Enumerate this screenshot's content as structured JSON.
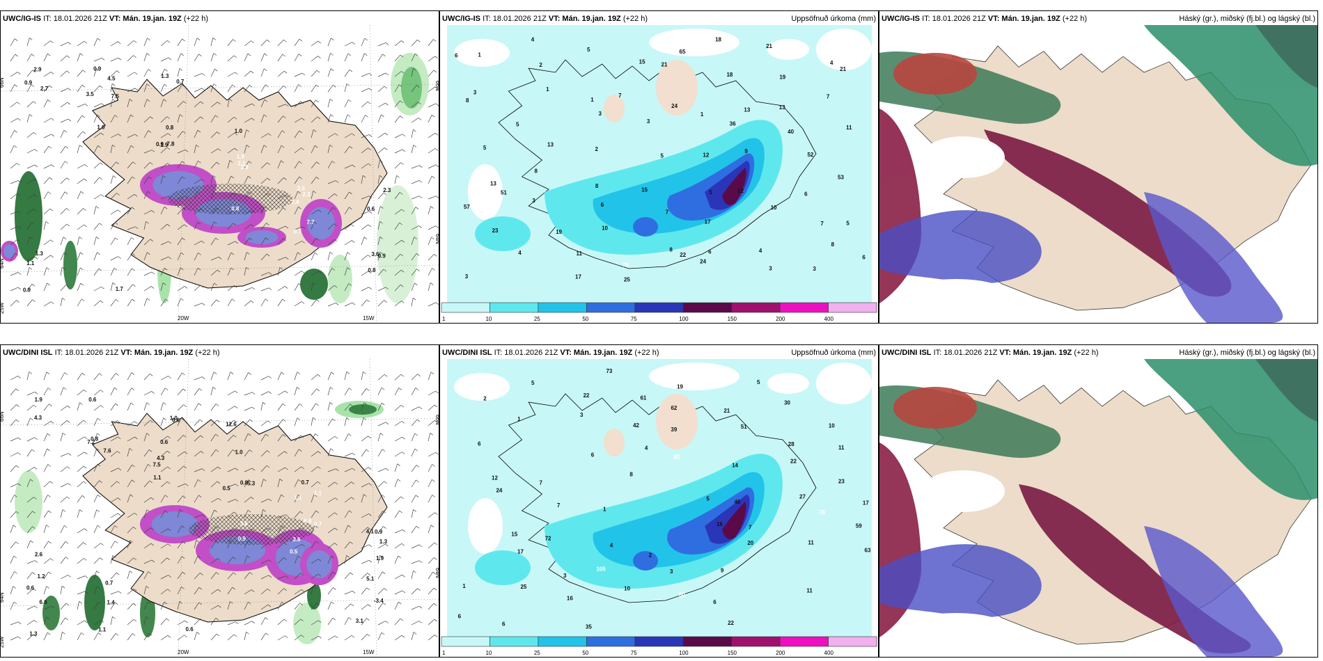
{
  "panels": {
    "ig_wind": {
      "model": "UWC/IG-IS",
      "it": "IT: 18.01.2026 21Z",
      "vt": "VT: Mán. 19.jan. 19Z",
      "lead": "(+22 h)"
    },
    "ig_precip": {
      "model": "UWC/IG-IS",
      "it": "IT: 18.01.2026 21Z",
      "vt": "VT: Mán. 19.jan. 19Z",
      "lead": "(+22 h)",
      "right": "Uppsöfnuð úrkoma (mm)"
    },
    "ig_cloud": {
      "model": "UWC/IG-IS",
      "it": "IT: 18.01.2026 21Z",
      "vt": "VT: Mán. 19.jan. 19Z",
      "lead": "(+22 h)",
      "right": "Háský (gr.), miðský (fj.bl.) og lágský (bl.)"
    },
    "dini_wind": {
      "model": "UWC/DINI ISL",
      "it": "IT: 18.01.2026 21Z",
      "vt": "VT: Mán. 19.jan. 19Z",
      "lead": "(+22 h)"
    },
    "dini_precip": {
      "model": "UWC/DINI ISL",
      "it": "IT: 18.01.2026 21Z",
      "vt": "VT: Mán. 19.jan. 19Z",
      "lead": "(+22 h)",
      "right": "Uppsöfnuð úrkoma (mm)"
    },
    "dini_cloud": {
      "model": "UWC/DINI ISL",
      "it": "IT: 18.01.2026 21Z",
      "vt": "VT: Mán. 19.jan. 19Z",
      "lead": "(+22 h)",
      "right": "Háský (gr.), miðský (fj.bl.) og lágský (bl.)"
    }
  },
  "axis_labels": {
    "lat66": "66N",
    "lat64": "64N",
    "lon20": "20W",
    "lon15": "15W",
    "lon25": "25W"
  },
  "colorbar": {
    "ticks": [
      "1",
      "10",
      "25",
      "50",
      "75",
      "100",
      "150",
      "200",
      "400"
    ],
    "colors": [
      "#c8f7f7",
      "#5ee8ee",
      "#22c3e8",
      "#2f6ee0",
      "#2a35b8",
      "#5a0a48",
      "#a0106e",
      "#ee10c0",
      "#f2b0ee"
    ]
  },
  "wind_values": {
    "ig": [
      "0.9",
      "1.0",
      "0.9",
      "0.8",
      "0.7",
      "0.8",
      "2.7",
      "3.5",
      "1.9",
      "2.8",
      "2.4",
      "0.9",
      "2.9",
      "7.5",
      "7.8",
      "1.9",
      "7.7",
      "3.6",
      "0.9",
      "4.5",
      "0.8",
      "2.1",
      "2.3",
      "0.6",
      "1.1",
      "0.9",
      "0.7",
      "1.0",
      "2.5",
      "2.3",
      "1.3",
      "1.7",
      "1.3"
    ],
    "dini": [
      "1.9",
      "0.8",
      "1.1",
      "0.9",
      "0.5",
      "3.1",
      "4.3",
      "7.6",
      "4.3",
      "3.6",
      "3.6",
      "-3.4",
      "1.3",
      "7.2",
      "7.5",
      "5.3",
      "6.6",
      "5.1",
      "6.6",
      "0.6",
      "0.6",
      "0.5",
      "0.7",
      "1.3",
      "0.6",
      "1.1",
      "1.0",
      "0.8",
      "2.1",
      "1.9",
      "1.2",
      "1.4",
      "0.6",
      "1.0",
      "1.1",
      "0.9",
      "2.6",
      "0.7",
      "0.6",
      "12.6",
      "0.7",
      "4.1"
    ]
  },
  "precip_values": {
    "ig": [
      "1",
      "1",
      "3",
      "5",
      "5",
      "10",
      "8",
      "3",
      "2",
      "1",
      "3",
      "12",
      "12",
      "7",
      "6",
      "4",
      "5",
      "7",
      "1",
      "9",
      "6",
      "5",
      "4",
      "17",
      "15",
      "24",
      "36",
      "52",
      "57",
      "23",
      "11",
      "25",
      "21",
      "13",
      "40",
      "53",
      "51",
      "19",
      "78",
      "65",
      "18",
      "13",
      "11",
      "13",
      "3",
      "10",
      "22",
      "18",
      "19",
      "7",
      "5",
      "8",
      "6",
      "8",
      "24",
      "21",
      "21",
      "8",
      "13",
      "8",
      "7",
      "6",
      "3",
      "4",
      "3",
      "5",
      "2",
      "15",
      "17",
      "4",
      "3",
      "6"
    ],
    "dini": [
      "2",
      "1",
      "6",
      "8",
      "16",
      "20",
      "11",
      "6",
      "5",
      "3",
      "4",
      "5",
      "7",
      "11",
      "1",
      "6",
      "22",
      "42",
      "82",
      "46",
      "78",
      "63",
      "25",
      "35",
      "61",
      "39",
      "14",
      "27",
      "59",
      "17",
      "16",
      "73",
      "62",
      "51",
      "22",
      "17",
      "15",
      "3",
      "10",
      "19",
      "21",
      "28",
      "23",
      "24",
      "72",
      "105",
      "80",
      "22",
      "30",
      "11",
      "12",
      "7",
      "4",
      "3",
      "6",
      "5",
      "10",
      "6",
      "7",
      "1",
      "2",
      "9"
    ]
  }
}
